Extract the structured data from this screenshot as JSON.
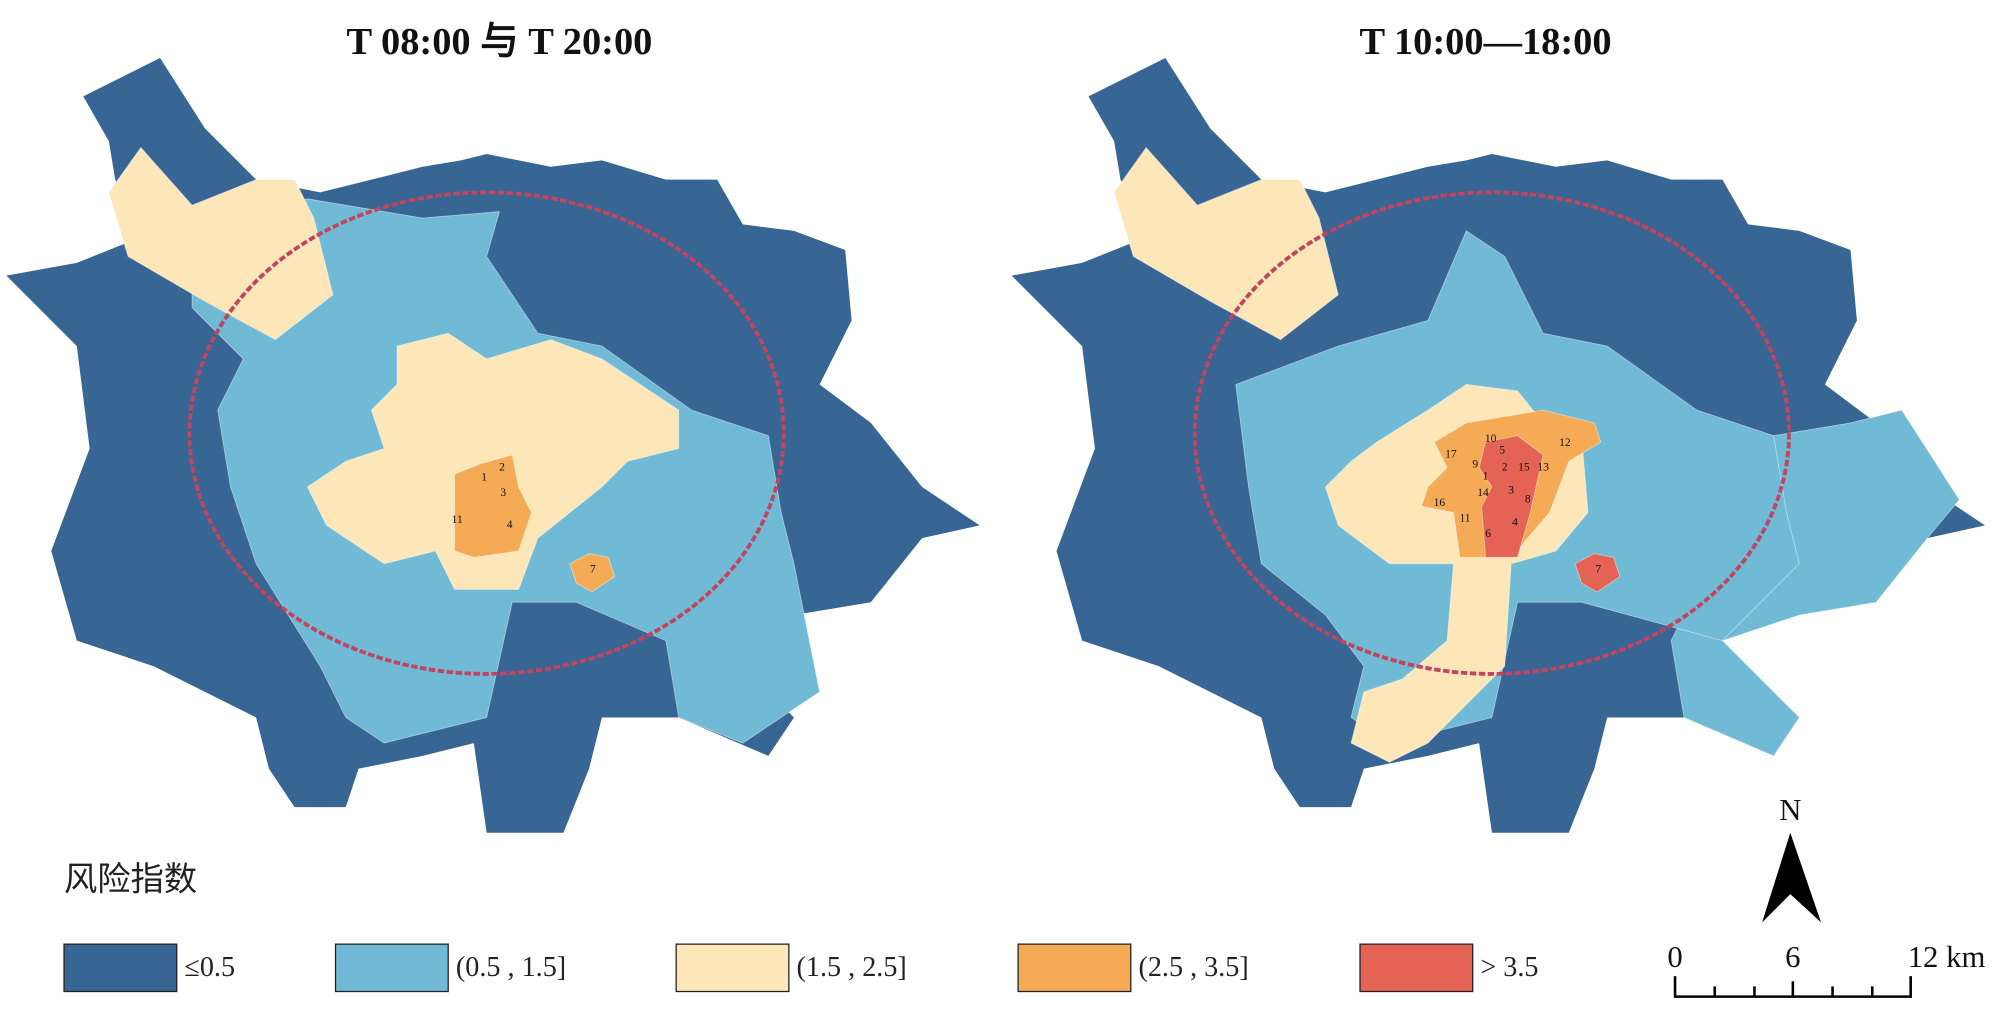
{
  "maps": [
    {
      "title": "T 08:00 与  T  20:00",
      "zones": [
        {
          "id": "1",
          "x": 378,
          "y": 375
        },
        {
          "id": "2",
          "x": 392,
          "y": 367
        },
        {
          "id": "3",
          "x": 393,
          "y": 387
        },
        {
          "id": "11",
          "x": 357,
          "y": 408
        },
        {
          "id": "4",
          "x": 398,
          "y": 412
        },
        {
          "id": "7",
          "x": 463,
          "y": 447
        }
      ]
    },
    {
      "title": "T 10:00—18:00",
      "zones": [
        {
          "id": "10",
          "x": 1164,
          "y": 345
        },
        {
          "id": "5",
          "x": 1173,
          "y": 354
        },
        {
          "id": "17",
          "x": 1133,
          "y": 357
        },
        {
          "id": "9",
          "x": 1152,
          "y": 365
        },
        {
          "id": "2",
          "x": 1175,
          "y": 367
        },
        {
          "id": "15",
          "x": 1190,
          "y": 367
        },
        {
          "id": "13",
          "x": 1205,
          "y": 367
        },
        {
          "id": "1",
          "x": 1160,
          "y": 374
        },
        {
          "id": "14",
          "x": 1158,
          "y": 387
        },
        {
          "id": "3",
          "x": 1180,
          "y": 385
        },
        {
          "id": "8",
          "x": 1193,
          "y": 392
        },
        {
          "id": "16",
          "x": 1124,
          "y": 395
        },
        {
          "id": "11",
          "x": 1144,
          "y": 407
        },
        {
          "id": "4",
          "x": 1183,
          "y": 410
        },
        {
          "id": "6",
          "x": 1162,
          "y": 419
        },
        {
          "id": "7",
          "x": 1248,
          "y": 447
        },
        {
          "id": "12",
          "x": 1222,
          "y": 348
        }
      ]
    }
  ],
  "legend": {
    "title": "风险指数",
    "items": [
      {
        "label": "≤0.5",
        "color": "#376594"
      },
      {
        "label": "(0.5 , 1.5]",
        "color": "#70bad5"
      },
      {
        "label": "(1.5 , 2.5]",
        "color": "#fde6b8"
      },
      {
        "label": "(2.5 , 3.5]",
        "color": "#f5aa56"
      },
      {
        "label": "> 3.5",
        "color": "#e46354"
      }
    ]
  },
  "north_arrow": {
    "label": "N"
  },
  "scale_bar": {
    "labels": [
      "0",
      "6",
      "12 km"
    ]
  },
  "ring_road_color": "#c2445e"
}
